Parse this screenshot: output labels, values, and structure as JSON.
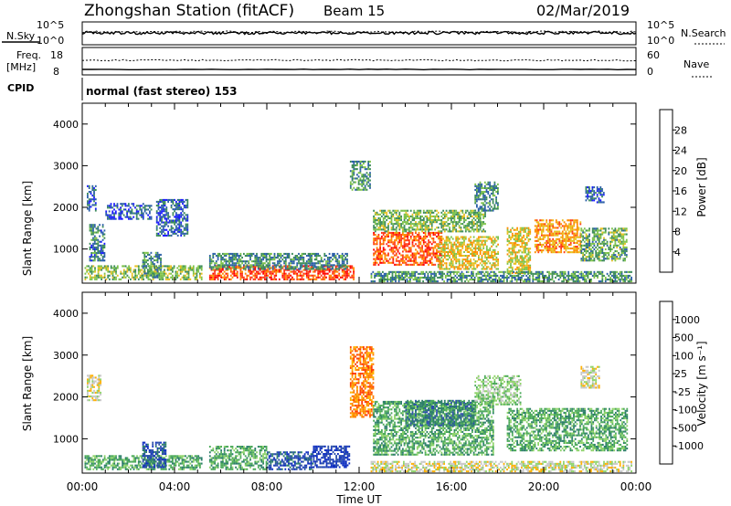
{
  "header": {
    "title": "Zhongshan Station (fitACF)",
    "beam": "Beam 15",
    "date": "02/Mar/2019"
  },
  "strips": {
    "nsky": {
      "label": "N.Sky",
      "left_ticks": [
        "10^5",
        "10^0"
      ],
      "right_label": "N.Search",
      "right_ticks": [
        "10^5",
        "10^0"
      ]
    },
    "freq": {
      "label_top": "Freq.",
      "label_unit": "[MHz]",
      "left_ticks": [
        "18",
        "8"
      ],
      "right_label": "Nave",
      "right_ticks": [
        "60",
        "0"
      ]
    },
    "cpid": {
      "label": "CPID",
      "value": "normal (fast stereo) 153"
    }
  },
  "colors": {
    "power": [
      "#1a1aff",
      "#2b5fa8",
      "#3d8c5a",
      "#7dc24a",
      "#e8c020",
      "#ff8c00",
      "#ff3b1a",
      "#ff0000"
    ],
    "velocity": [
      "#e00000",
      "#ff3b00",
      "#ff7a00",
      "#ffb000",
      "#c8c8c8",
      "#8ed36a",
      "#4caa5a",
      "#2d7f6a",
      "#2b4fa8",
      "#1030c0"
    ],
    "ground_scatter": "#9a9a9a"
  },
  "chart_data": [
    {
      "type": "heatmap",
      "name": "power-panel",
      "xlabel": "Time UT",
      "ylabel": "Slant Range [km]",
      "xlim": [
        0,
        24
      ],
      "ylim": [
        180,
        4500
      ],
      "x_ticks": [
        "00:00",
        "04:00",
        "08:00",
        "12:00",
        "16:00",
        "20:00",
        "00:00"
      ],
      "y_ticks": [
        1000,
        2000,
        3000,
        4000
      ],
      "colorbar": {
        "label": "Power [dB]",
        "ticks": [
          "4",
          "8",
          "12",
          "16",
          "20",
          "24",
          "28"
        ],
        "range": [
          0,
          32
        ]
      },
      "regions": [
        {
          "t0": 0.1,
          "t1": 5.2,
          "r0": 250,
          "r1": 600,
          "v": 14
        },
        {
          "t0": 0.2,
          "t1": 0.6,
          "r0": 1900,
          "r1": 2500,
          "v": 6
        },
        {
          "t0": 0.3,
          "t1": 1.0,
          "r0": 700,
          "r1": 1600,
          "v": 8
        },
        {
          "t0": 1.0,
          "t1": 3.0,
          "r0": 1700,
          "r1": 2100,
          "v": 6
        },
        {
          "t0": 2.6,
          "t1": 3.4,
          "r0": 300,
          "r1": 900,
          "v": 10
        },
        {
          "t0": 3.2,
          "t1": 4.6,
          "r0": 1300,
          "r1": 2200,
          "v": 6
        },
        {
          "t0": 5.5,
          "t1": 11.8,
          "r0": 250,
          "r1": 600,
          "v": 26
        },
        {
          "t0": 5.5,
          "t1": 11.5,
          "r0": 500,
          "r1": 900,
          "v": 9
        },
        {
          "t0": 11.6,
          "t1": 12.5,
          "r0": 2400,
          "r1": 3100,
          "v": 10
        },
        {
          "t0": 12.6,
          "t1": 15.6,
          "r0": 600,
          "r1": 1400,
          "v": 25
        },
        {
          "t0": 12.6,
          "t1": 17.5,
          "r0": 1400,
          "r1": 1900,
          "v": 13
        },
        {
          "t0": 15.4,
          "t1": 18.0,
          "r0": 500,
          "r1": 1300,
          "v": 18
        },
        {
          "t0": 17.0,
          "t1": 18.0,
          "r0": 1900,
          "r1": 2600,
          "v": 9
        },
        {
          "t0": 18.4,
          "t1": 19.4,
          "r0": 400,
          "r1": 1500,
          "v": 17
        },
        {
          "t0": 19.6,
          "t1": 21.6,
          "r0": 900,
          "r1": 1700,
          "v": 21
        },
        {
          "t0": 21.6,
          "t1": 23.6,
          "r0": 700,
          "r1": 1500,
          "v": 12
        },
        {
          "t0": 21.8,
          "t1": 22.6,
          "r0": 2100,
          "r1": 2500,
          "v": 6
        },
        {
          "t0": 12.5,
          "t1": 23.8,
          "r0": 200,
          "r1": 450,
          "v": 10
        }
      ]
    },
    {
      "type": "heatmap",
      "name": "velocity-panel",
      "xlabel": "Time UT",
      "ylabel": "Slant Range [km]",
      "xlim": [
        0,
        24
      ],
      "ylim": [
        180,
        4500
      ],
      "x_ticks": [
        "00:00",
        "04:00",
        "08:00",
        "12:00",
        "16:00",
        "20:00",
        "00:00"
      ],
      "y_ticks": [
        1000,
        2000,
        3000,
        4000
      ],
      "colorbar": {
        "label": "Velocity [m s⁻¹]",
        "ticks": [
          "-1000",
          "-500",
          "-100",
          "-25",
          "25",
          "100",
          "500",
          "1000"
        ]
      },
      "regions": [
        {
          "t0": 0.1,
          "t1": 5.2,
          "r0": 250,
          "r1": 600,
          "v": 6
        },
        {
          "t0": 0.2,
          "t1": 0.8,
          "r0": 1900,
          "r1": 2500,
          "v": 4
        },
        {
          "t0": 2.6,
          "t1": 3.6,
          "r0": 300,
          "r1": 900,
          "v": 8
        },
        {
          "t0": 5.5,
          "t1": 8.0,
          "r0": 250,
          "r1": 800,
          "v": 6
        },
        {
          "t0": 8.0,
          "t1": 10.0,
          "r0": 250,
          "r1": 700,
          "v": 8
        },
        {
          "t0": 10.0,
          "t1": 11.6,
          "r0": 300,
          "r1": 800,
          "v": 9
        },
        {
          "t0": 11.6,
          "t1": 12.6,
          "r0": 1500,
          "r1": 3200,
          "v": 2
        },
        {
          "t0": 12.6,
          "t1": 17.8,
          "r0": 600,
          "r1": 1900,
          "v": 6
        },
        {
          "t0": 14.0,
          "t1": 17.0,
          "r0": 1300,
          "r1": 1900,
          "v": 7
        },
        {
          "t0": 17.0,
          "t1": 19.0,
          "r0": 1800,
          "r1": 2500,
          "v": 5
        },
        {
          "t0": 18.4,
          "t1": 23.6,
          "r0": 700,
          "r1": 1700,
          "v": 6
        },
        {
          "t0": 21.6,
          "t1": 22.4,
          "r0": 2200,
          "r1": 2700,
          "v": 4
        },
        {
          "t0": 12.5,
          "t1": 23.8,
          "r0": 200,
          "r1": 450,
          "v": 4
        }
      ]
    }
  ]
}
